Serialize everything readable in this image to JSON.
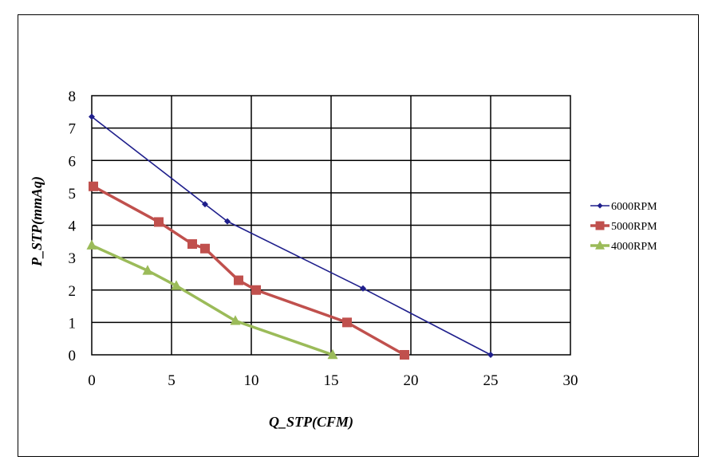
{
  "chart_data": {
    "type": "line",
    "title": "",
    "xlabel": "Q_STP(CFM)",
    "ylabel": "P_STP(mmAq)",
    "xlim": [
      0,
      30
    ],
    "ylim": [
      0,
      8
    ],
    "x_ticks": [
      0,
      5,
      10,
      15,
      20,
      25,
      30
    ],
    "y_ticks": [
      0,
      1,
      2,
      3,
      4,
      5,
      6,
      7,
      8
    ],
    "grid": true,
    "legend_position": "right",
    "series": [
      {
        "name": "6000RPM",
        "color": "#1f1f8c",
        "marker": "diamond",
        "points": [
          [
            0,
            7.35
          ],
          [
            7.1,
            4.65
          ],
          [
            8.5,
            4.12
          ],
          [
            17,
            2.05
          ],
          [
            25,
            0
          ]
        ]
      },
      {
        "name": "5000RPM",
        "color": "#c0504d",
        "marker": "square",
        "points": [
          [
            0.1,
            5.2
          ],
          [
            4.2,
            4.1
          ],
          [
            6.3,
            3.42
          ],
          [
            7.1,
            3.28
          ],
          [
            9.2,
            2.3
          ],
          [
            10.3,
            2.0
          ],
          [
            16,
            1.0
          ],
          [
            19.6,
            0
          ]
        ]
      },
      {
        "name": "4000RPM",
        "color": "#9bbb59",
        "marker": "triangle",
        "points": [
          [
            0,
            3.38
          ],
          [
            3.5,
            2.6
          ],
          [
            5.3,
            2.13
          ],
          [
            9,
            1.05
          ],
          [
            15.1,
            0
          ]
        ]
      }
    ]
  }
}
